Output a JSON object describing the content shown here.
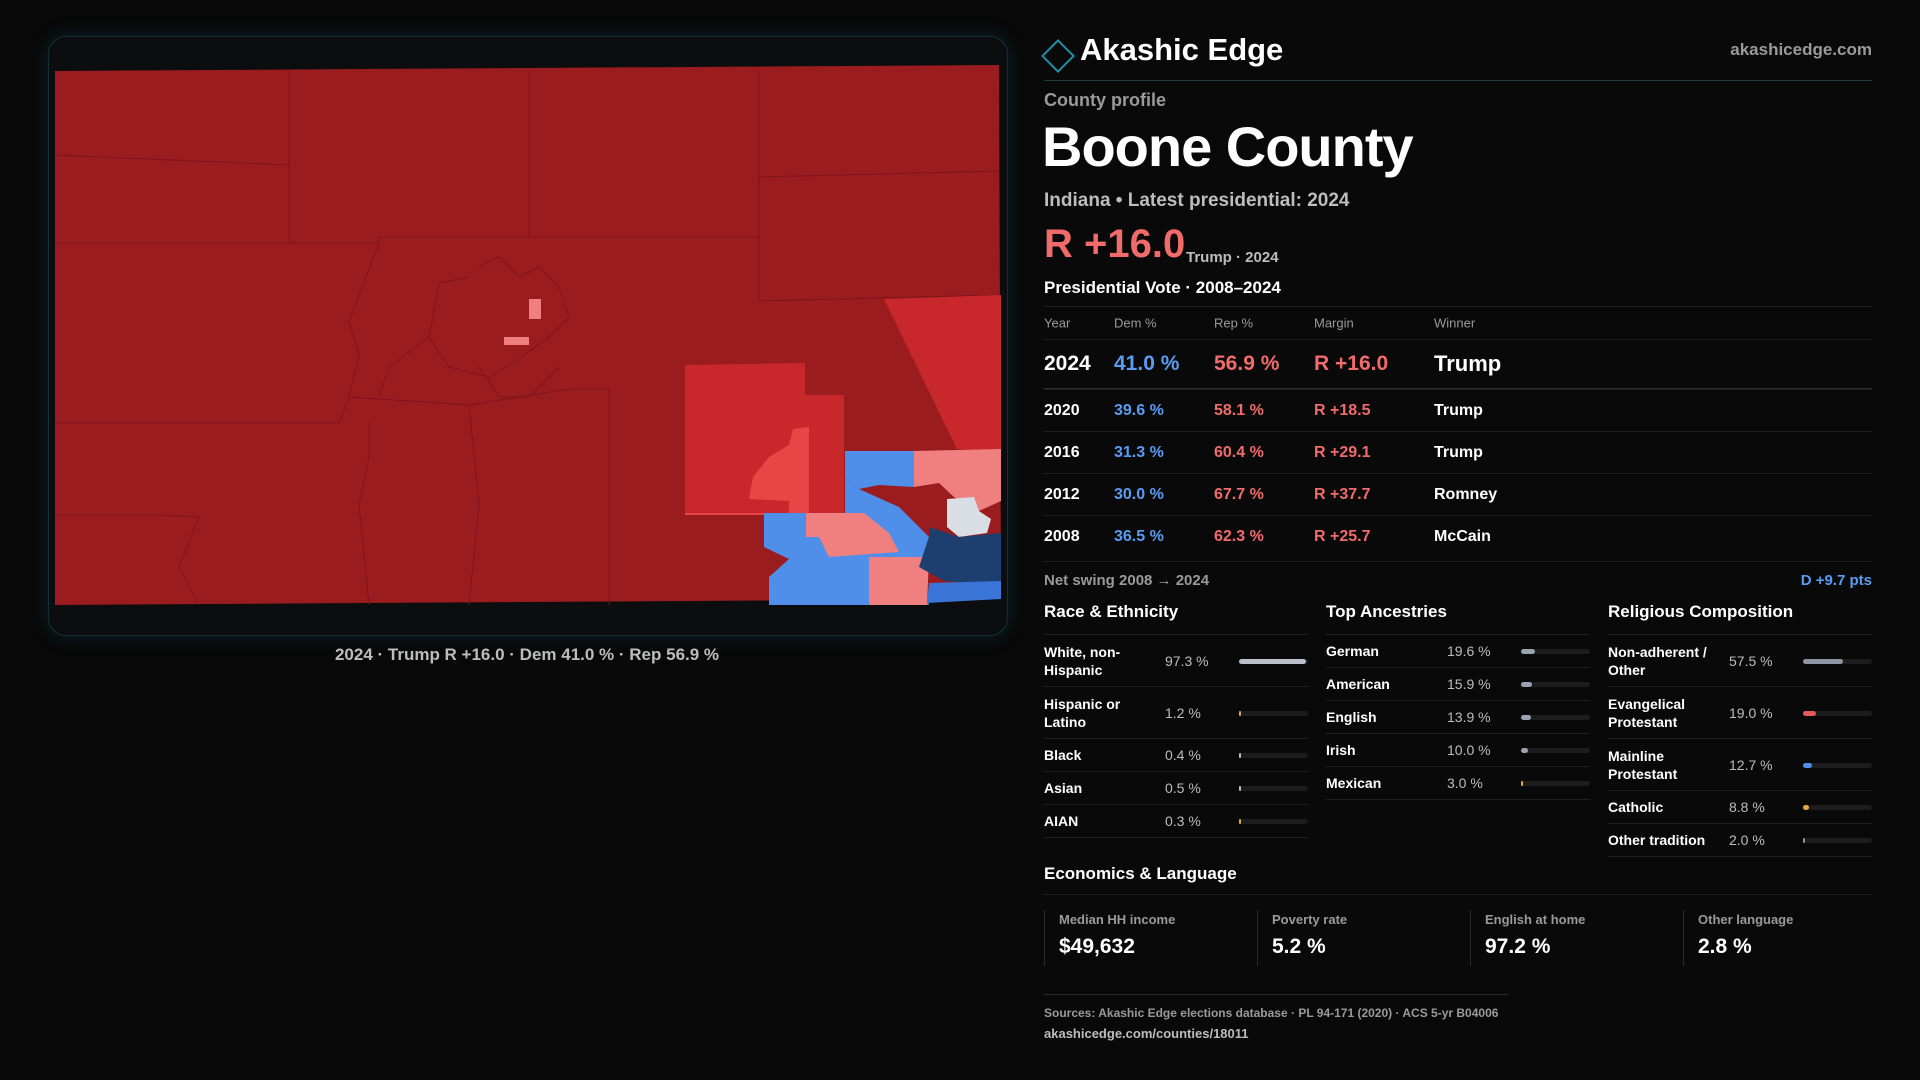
{
  "brand": {
    "name": "Akashic Edge",
    "site": "akashicedge.com"
  },
  "profile_label": "County profile",
  "county": {
    "name": "Boone County",
    "subtitle": "Indiana • Latest presidential: 2024",
    "headline_margin": "R +16.0",
    "headline_note": "Trump · 2024"
  },
  "map": {
    "caption": "2024 · Trump R +16.0 · Dem 41.0 % · Rep 56.9 %",
    "colors": {
      "safe_rep": "#9b1c1f",
      "likely_rep": "#c8282c",
      "lean_rep": "#e84545",
      "tilt_rep": "#f08080",
      "tossup": "#d9dde4",
      "lean_dem": "#4f8fea",
      "likely_dem": "#3a74d6",
      "safe_dem": "#1d3e6e"
    }
  },
  "vote": {
    "title": "Presidential Vote · 2008–2024",
    "headers": {
      "year": "Year",
      "dem": "Dem %",
      "rep": "Rep %",
      "margin": "Margin",
      "winner": "Winner"
    },
    "rows": [
      {
        "year": "2024",
        "dem": "41.0 %",
        "rep": "56.9 %",
        "margin": "R +16.0",
        "winner": "Trump"
      },
      {
        "year": "2020",
        "dem": "39.6 %",
        "rep": "58.1 %",
        "margin": "R +18.5",
        "winner": "Trump"
      },
      {
        "year": "2016",
        "dem": "31.3 %",
        "rep": "60.4 %",
        "margin": "R +29.1",
        "winner": "Trump"
      },
      {
        "year": "2012",
        "dem": "30.0 %",
        "rep": "67.7 %",
        "margin": "R +37.7",
        "winner": "Romney"
      },
      {
        "year": "2008",
        "dem": "36.5 %",
        "rep": "62.3 %",
        "margin": "R +25.7",
        "winner": "McCain"
      }
    ],
    "swing_label": "Net swing 2008 → 2024",
    "swing_value": "D +9.7 pts"
  },
  "race": {
    "title": "Race & Ethnicity",
    "items": [
      {
        "label": "White, non-Hispanic",
        "value": "97.3 %",
        "share": 0.973,
        "color": "#b9c0cc"
      },
      {
        "label": "Hispanic or Latino",
        "value": "1.2 %",
        "share": 0.012,
        "color": "#e0a83a"
      },
      {
        "label": "Black",
        "value": "0.4 %",
        "share": 0.004,
        "color": "#b9c0cc"
      },
      {
        "label": "Asian",
        "value": "0.5 %",
        "share": 0.005,
        "color": "#b9c0cc"
      },
      {
        "label": "AIAN",
        "value": "0.3 %",
        "share": 0.003,
        "color": "#e0a83a"
      }
    ]
  },
  "ancestry": {
    "title": "Top Ancestries",
    "items": [
      {
        "label": "German",
        "value": "19.6 %",
        "share": 0.196,
        "color": "#9aa3b2"
      },
      {
        "label": "American",
        "value": "15.9 %",
        "share": 0.159,
        "color": "#9aa3b2"
      },
      {
        "label": "English",
        "value": "13.9 %",
        "share": 0.139,
        "color": "#9aa3b2"
      },
      {
        "label": "Irish",
        "value": "10.0 %",
        "share": 0.1,
        "color": "#9aa3b2"
      },
      {
        "label": "Mexican",
        "value": "3.0 %",
        "share": 0.03,
        "color": "#e0a83a"
      }
    ]
  },
  "religion": {
    "title": "Religious Composition",
    "items": [
      {
        "label": "Non-adherent / Other",
        "value": "57.5 %",
        "share": 0.575,
        "color": "#8e96a4"
      },
      {
        "label": "Evangelical Protestant",
        "value": "19.0 %",
        "share": 0.19,
        "color": "#e85a5a"
      },
      {
        "label": "Mainline Protestant",
        "value": "12.7 %",
        "share": 0.127,
        "color": "#4f8fea"
      },
      {
        "label": "Catholic",
        "value": "8.8 %",
        "share": 0.088,
        "color": "#e0a83a"
      },
      {
        "label": "Other tradition",
        "value": "2.0 %",
        "share": 0.02,
        "color": "#8e96a4"
      }
    ]
  },
  "econ": {
    "title": "Economics & Language",
    "items": [
      {
        "label": "Median HH income",
        "value": "$49,632"
      },
      {
        "label": "Poverty rate",
        "value": "5.2 %"
      },
      {
        "label": "English at home",
        "value": "97.2 %"
      },
      {
        "label": "Other language",
        "value": "2.8 %"
      }
    ]
  },
  "sources": "Sources: Akashic Edge elections database · PL 94-171 (2020) · ACS 5-yr B04006",
  "source_url": "akashicedge.com/counties/18011"
}
